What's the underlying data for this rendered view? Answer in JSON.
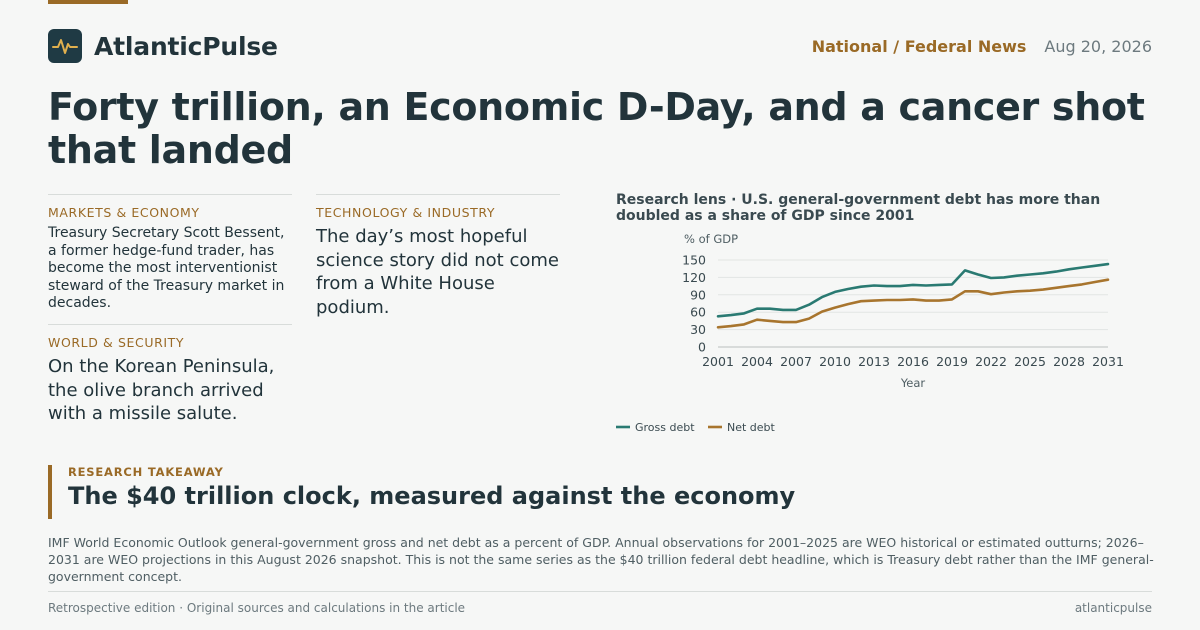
{
  "brand": {
    "name": "AtlanticPulse",
    "logo_icon": "pulse-icon"
  },
  "header": {
    "section": "National / Federal News",
    "date": "Aug 20, 2026"
  },
  "headline": "Forty trillion, an Economic D-Day, and a cancer shot that landed",
  "stories": [
    {
      "kicker": "MARKETS & ECONOMY",
      "text": "Treasury Secretary Scott Bessent, a former hedge-fund trader, has become the most interventionist steward of the Treasury market in decades."
    },
    {
      "kicker": "WORLD & SECURITY",
      "text": "On the Korean Peninsula, the olive branch arrived with a missile salute."
    },
    {
      "kicker": "TECHNOLOGY & INDUSTRY",
      "text": "The day’s most hopeful science story did not come from a White House podium."
    }
  ],
  "chart_title": "Research lens · U.S. general-government debt has more than doubled as a share of GDP since 2001",
  "chart_data": {
    "type": "line",
    "ylabel": "% of GDP",
    "xlabel": "Year",
    "ylim": [
      0,
      150
    ],
    "xlim": [
      2001,
      2031
    ],
    "yticks": [
      0,
      30,
      60,
      90,
      120,
      150
    ],
    "xticks": [
      2001,
      2004,
      2007,
      2010,
      2013,
      2016,
      2019,
      2022,
      2025,
      2028,
      2031
    ],
    "grid": true,
    "legend_position": "bottom-left",
    "x": [
      2001,
      2002,
      2003,
      2004,
      2005,
      2006,
      2007,
      2008,
      2009,
      2010,
      2011,
      2012,
      2013,
      2014,
      2015,
      2016,
      2017,
      2018,
      2019,
      2020,
      2021,
      2022,
      2023,
      2024,
      2025,
      2026,
      2027,
      2028,
      2029,
      2030,
      2031
    ],
    "series": [
      {
        "name": "Gross debt",
        "color": "#2a7a72",
        "values": [
          53,
          55,
          58,
          66,
          66,
          64,
          64,
          73,
          86,
          95,
          100,
          104,
          106,
          105,
          105,
          107,
          106,
          107,
          108,
          132,
          125,
          119,
          120,
          123,
          125,
          127,
          130,
          134,
          137,
          140,
          143
        ]
      },
      {
        "name": "Net debt",
        "color": "#a8752e",
        "values": [
          34,
          36,
          39,
          47,
          45,
          43,
          43,
          49,
          61,
          68,
          74,
          79,
          80,
          81,
          81,
          82,
          80,
          80,
          82,
          96,
          96,
          91,
          94,
          96,
          97,
          99,
          102,
          105,
          108,
          112,
          116
        ]
      }
    ]
  },
  "takeaway": {
    "kicker": "RESEARCH TAKEAWAY",
    "title": "The $40 trillion clock, measured against the economy"
  },
  "note": "IMF World Economic Outlook general-government gross and net debt as a percent of GDP. Annual observations for 2001–2025 are WEO historical or estimated outturns; 2026–2031 are WEO projections in this August 2026 snapshot. This is not the same series as the $40 trillion federal debt headline, which is Treasury debt rather than the IMF general-government concept.",
  "footer": {
    "left": "Retrospective edition · Original sources and calculations in the article",
    "right": "atlanticpulse"
  },
  "colors": {
    "accent": "#9a6a26",
    "text": "#22343b",
    "background": "#f6f7f6",
    "logo_bg": "#1f3a44"
  }
}
